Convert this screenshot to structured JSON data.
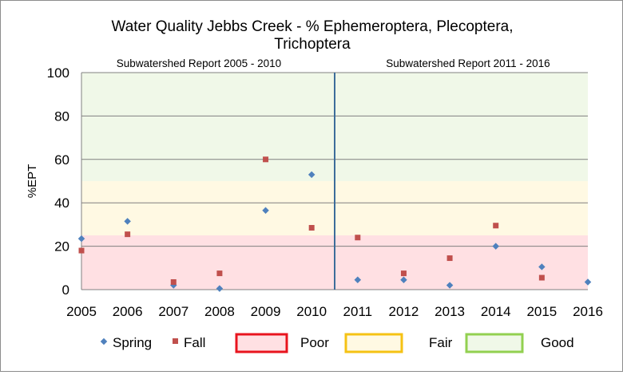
{
  "chart_data": {
    "type": "scatter",
    "title_lines": [
      "Water Quality Jebbs Creek - % Ephemeroptera, Plecoptera,",
      "Trichoptera"
    ],
    "xlabel": "",
    "ylabel": "%EPT",
    "xlim": [
      2005,
      2016
    ],
    "ylim": [
      0,
      100
    ],
    "yticks": [
      0,
      20,
      40,
      60,
      80,
      100
    ],
    "xticks": [
      2005,
      2006,
      2007,
      2008,
      2009,
      2010,
      2011,
      2012,
      2013,
      2014,
      2015,
      2016
    ],
    "grid": "horizontal",
    "legend_position": "bottom",
    "bands": [
      {
        "name": "Poor",
        "from": 0,
        "to": 25,
        "color": "#ffe0e3",
        "edge": "#e8141e"
      },
      {
        "name": "Fair",
        "from": 25,
        "to": 50,
        "color": "#fff9e3",
        "edge": "#f5c214"
      },
      {
        "name": "Good",
        "from": 50,
        "to": 100,
        "color": "#f0f8e8",
        "edge": "#92d050"
      }
    ],
    "divider_x": 2010.5,
    "region_labels": [
      {
        "text": "Subwatershed  Report 2005 - 2010",
        "x": 2007.4
      },
      {
        "text": "Subwatershed  Report 2011  - 2016",
        "x": 2013.5
      }
    ],
    "series": [
      {
        "name": "Spring",
        "marker": "diamond",
        "color": "#4f81bd",
        "x": [
          2005,
          2006,
          2007,
          2008,
          2009,
          2010,
          2011,
          2012,
          2013,
          2014,
          2015,
          2016
        ],
        "y": [
          23.5,
          31.5,
          2,
          0.5,
          36.5,
          53,
          4.5,
          4.5,
          2,
          20,
          10.5,
          3.5
        ]
      },
      {
        "name": "Fall",
        "marker": "square",
        "color": "#c0504d",
        "x": [
          2005,
          2006,
          2007,
          2008,
          2009,
          2010,
          2011,
          2012,
          2013,
          2014,
          2015
        ],
        "y": [
          18,
          25.5,
          3.5,
          7.5,
          60,
          28.5,
          24,
          7.5,
          14.5,
          29.5,
          5.5
        ]
      }
    ]
  }
}
